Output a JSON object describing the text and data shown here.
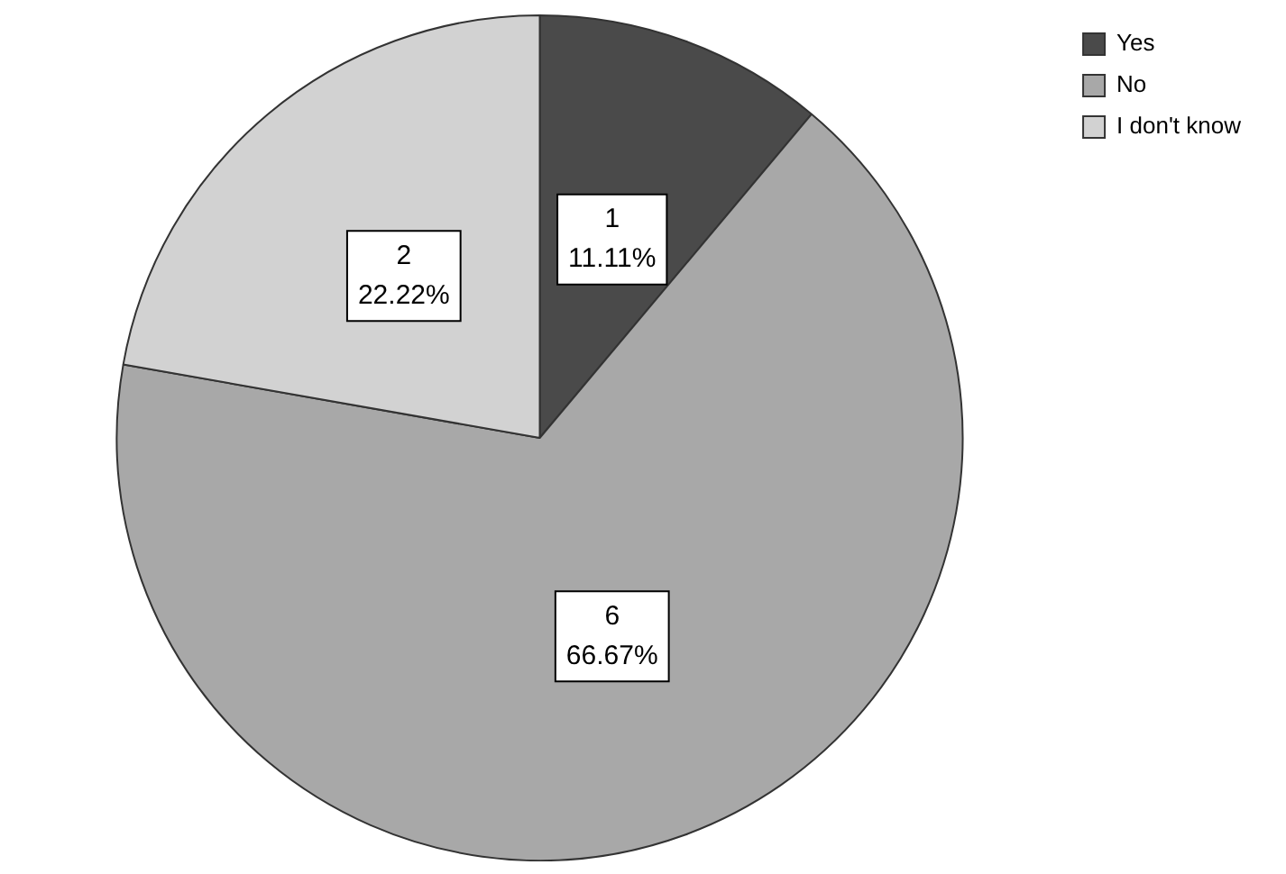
{
  "chart_data": {
    "type": "pie",
    "categories": [
      "Yes",
      "No",
      "I don't know"
    ],
    "values": [
      1,
      6,
      2
    ],
    "colors": [
      "#4a4a4a",
      "#a8a8a8",
      "#d2d2d2"
    ],
    "value_labels": [
      "1\n11.11%",
      "6\n66.67%",
      "2\n22.22%"
    ],
    "legend": "top right"
  }
}
